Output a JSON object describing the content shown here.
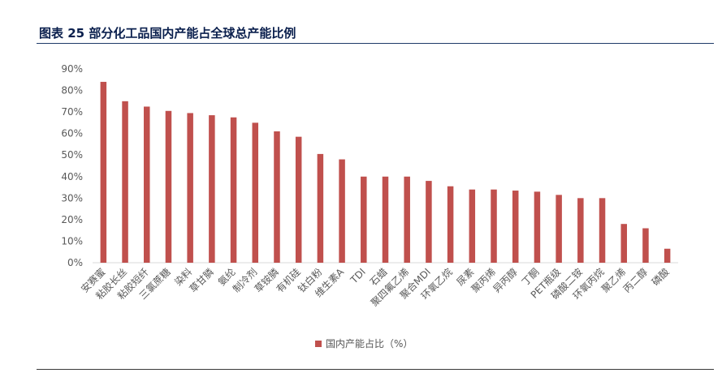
{
  "figure": {
    "title": "图表 25 部分化工品国内产能占全球总产能比例"
  },
  "colors": {
    "bar": "#c0504d",
    "title": "#0a1f4d",
    "axis_text": "#595959",
    "gridline": "#d9d9d9"
  },
  "chart_data": {
    "type": "bar",
    "categories": [
      "安赛蜜",
      "粘胶长丝",
      "粘胶短纤",
      "三氯蔗糖",
      "染料",
      "草甘膦",
      "氨纶",
      "制冷剂",
      "草铵膦",
      "有机硅",
      "钛白粉",
      "维生素A",
      "TDI",
      "石蜡",
      "聚四氟乙烯",
      "聚合MDI",
      "环氧乙烷",
      "尿素",
      "聚丙烯",
      "异丙醇",
      "丁酮",
      "PET瓶级",
      "磷酸二铵",
      "环氧丙烷",
      "聚乙烯",
      "丙二醇",
      "磷酸"
    ],
    "series": [
      {
        "name": "国内产能占比（%）",
        "values": [
          84,
          75,
          72.5,
          70.5,
          69.5,
          68.5,
          67.5,
          65,
          61,
          58.5,
          50.5,
          48,
          40,
          40,
          40,
          38,
          35.5,
          34,
          34,
          33.5,
          33,
          31.5,
          30,
          30,
          18,
          16,
          6.5
        ]
      }
    ],
    "yticks": [
      "0%",
      "10%",
      "20%",
      "30%",
      "40%",
      "50%",
      "60%",
      "70%",
      "80%",
      "90%"
    ],
    "ylim": [
      0,
      90
    ],
    "grid": false,
    "legend_position": "bottom"
  }
}
